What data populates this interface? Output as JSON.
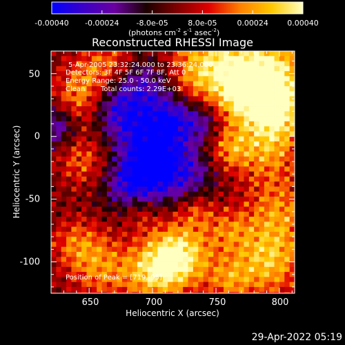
{
  "colorbar": {
    "ticks": [
      "-0.00040",
      "-0.00024",
      "-8.0e-05",
      "8.0e-05",
      "0.00024",
      "0.00040"
    ],
    "tick_values": [
      -0.0004,
      -0.00024,
      -8e-05,
      8e-05,
      0.00024,
      0.0004
    ],
    "range": [
      -0.0004,
      0.0004
    ],
    "units_prefix": "(photons cm",
    "units_exp1": "-2",
    "units_mid": " s",
    "units_exp2": "-1",
    "units_mid2": " asec",
    "units_exp3": "-2",
    "units_suffix": ")",
    "stops": [
      "#0000ff",
      "#3a00c8",
      "#6a00a0",
      "#1a0000",
      "#800000",
      "#e00000",
      "#ff8000",
      "#ffc800",
      "#ffffc0"
    ]
  },
  "chart_data": {
    "type": "heatmap",
    "title": "Reconstructed RHESSI Image",
    "xlabel": "Heliocentric X (arcsec)",
    "ylabel": "Heliocentric Y (arcsec)",
    "xlim": [
      620,
      812
    ],
    "ylim": [
      -125,
      68
    ],
    "x_ticks": [
      650,
      700,
      750,
      800
    ],
    "y_ticks": [
      50,
      0,
      -50,
      -100
    ],
    "annotations": {
      "time_range": "5-Apr-2005 23:32:24.000 to 23:36:24.000",
      "detectors": "Detectors: 3F 4F 5F 6F 7F 8F, Att 0",
      "energy": "Energy Range: 25.0 - 50.0 keV",
      "clean": "Clean",
      "total_counts": "Total counts: 2.29E+03",
      "peak": "Position of Peak = [719,-95]"
    },
    "peak": [
      719,
      -95
    ],
    "grid": false
  },
  "footer": {
    "date": "29-Apr-2022 05:19"
  }
}
